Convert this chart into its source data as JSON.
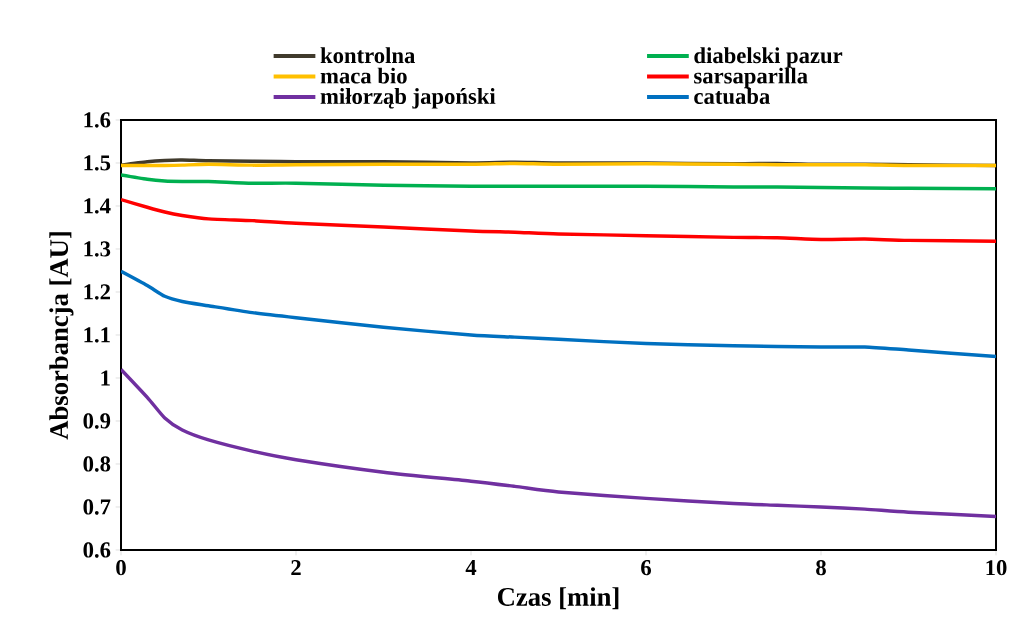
{
  "chart_data": {
    "type": "line",
    "xlabel": "Czas [min]",
    "ylabel": "Absorbancja [AU]",
    "xlim": [
      0,
      10
    ],
    "xticks": [
      0,
      2,
      4,
      6,
      8,
      10
    ],
    "ylim": [
      0.6,
      1.6
    ],
    "yticks": [
      0.6,
      0.7,
      0.8,
      0.9,
      1,
      1.1,
      1.2,
      1.3,
      1.4,
      1.5,
      1.6
    ],
    "legend": "top",
    "x": [
      0,
      0.3,
      0.5,
      0.7,
      1,
      1.5,
      2,
      3,
      4,
      4.5,
      5,
      6,
      7,
      7.5,
      8,
      8.5,
      9,
      10
    ],
    "series": [
      {
        "name": "kontrolna",
        "color": "#403a2c",
        "values": [
          1.495,
          1.503,
          1.506,
          1.507,
          1.505,
          1.504,
          1.503,
          1.503,
          1.5,
          1.502,
          1.5,
          1.5,
          1.498,
          1.499,
          1.497,
          1.497,
          1.496,
          1.494
        ]
      },
      {
        "name": "diabelski pazur",
        "color": "#00b050",
        "values": [
          1.472,
          1.462,
          1.458,
          1.457,
          1.457,
          1.453,
          1.453,
          1.448,
          1.446,
          1.446,
          1.446,
          1.446,
          1.444,
          1.444,
          1.443,
          1.442,
          1.441,
          1.44
        ]
      },
      {
        "name": "maca bio",
        "color": "#ffc000",
        "values": [
          1.494,
          1.494,
          1.494,
          1.495,
          1.497,
          1.495,
          1.496,
          1.497,
          1.497,
          1.499,
          1.497,
          1.498,
          1.497,
          1.496,
          1.496,
          1.496,
          1.494,
          1.494
        ]
      },
      {
        "name": "sarsaparilla",
        "color": "#ff0000",
        "values": [
          1.415,
          1.397,
          1.386,
          1.378,
          1.37,
          1.366,
          1.36,
          1.351,
          1.342,
          1.339,
          1.335,
          1.331,
          1.327,
          1.326,
          1.322,
          1.323,
          1.32,
          1.318
        ]
      },
      {
        "name": "miłorząb japoński",
        "color": "#7030a0",
        "values": [
          1.02,
          0.955,
          0.907,
          0.879,
          0.856,
          0.83,
          0.81,
          0.781,
          0.76,
          0.748,
          0.735,
          0.72,
          0.708,
          0.704,
          0.7,
          0.695,
          0.688,
          0.678
        ]
      },
      {
        "name": "catuaba",
        "color": "#0070c0",
        "values": [
          1.248,
          1.215,
          1.19,
          1.178,
          1.168,
          1.152,
          1.14,
          1.118,
          1.1,
          1.095,
          1.09,
          1.08,
          1.075,
          1.073,
          1.072,
          1.072,
          1.065,
          1.05
        ]
      }
    ]
  }
}
